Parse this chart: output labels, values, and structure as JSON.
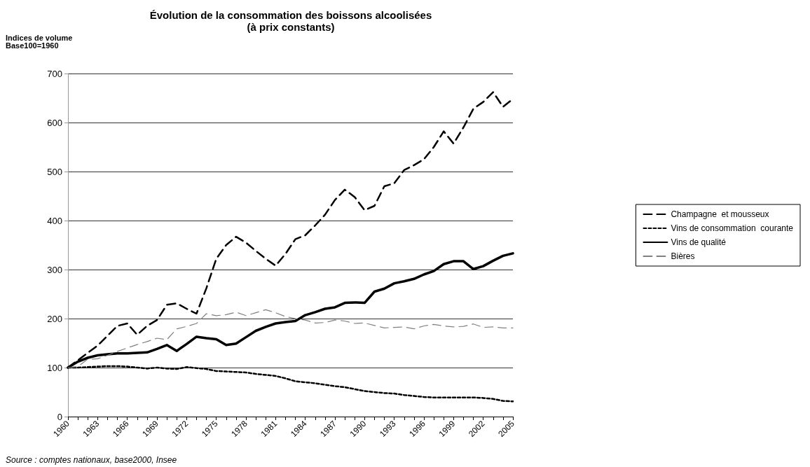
{
  "chart_data": {
    "type": "line",
    "title": "Évolution de la consommation des boissons alcoolisées\n(à prix constants)",
    "ylabel": "Indices de volume\nBase100=1960",
    "annotations": [
      "Source : comptes nationaux, base2000, Insee"
    ],
    "categories": [
      "1960",
      null,
      null,
      "1963",
      null,
      null,
      "1966",
      null,
      null,
      "1969",
      null,
      null,
      "1972",
      null,
      null,
      "1975",
      null,
      null,
      "1978",
      null,
      null,
      "1981",
      null,
      null,
      "1984",
      null,
      null,
      "1987",
      null,
      null,
      "1990",
      null,
      null,
      "1993",
      null,
      null,
      "1996",
      null,
      null,
      "1999",
      null,
      null,
      "2002",
      null,
      null,
      "2005"
    ],
    "ylim": [
      0,
      700
    ],
    "yticks": [
      0,
      100,
      200,
      300,
      400,
      500,
      600,
      700
    ],
    "grid": "y",
    "legend": "right",
    "marker": "none",
    "series": [
      {
        "name": "Champagne  et mousseux",
        "color": "#000000",
        "line_style": "dashed",
        "values": [
          100,
          115,
          130,
          145,
          165,
          185,
          190,
          167,
          185,
          197,
          228,
          231,
          220,
          210,
          262,
          322,
          350,
          367,
          355,
          338,
          322,
          308,
          332,
          362,
          370,
          390,
          412,
          442,
          463,
          448,
          421,
          430,
          470,
          476,
          503,
          513,
          525,
          550,
          582,
          557,
          590,
          628,
          642,
          662,
          632,
          648
        ]
      },
      {
        "name": "Vins de consommation  courante",
        "color": "#000000",
        "line_style": "dotted",
        "values": [
          100,
          100,
          101,
          102,
          103,
          103,
          102,
          100,
          98,
          100,
          98,
          97,
          101,
          99,
          97,
          93,
          92,
          91,
          90,
          87,
          85,
          83,
          78,
          72,
          70,
          68,
          65,
          62,
          60,
          56,
          52,
          50,
          48,
          47,
          44,
          42,
          40,
          39,
          39,
          39,
          39,
          39,
          38,
          36,
          32,
          31
        ]
      },
      {
        "name": "Vins de qualité",
        "color": "#000000",
        "line_style": "solid",
        "values": [
          100,
          112,
          120,
          125,
          127,
          129,
          129,
          130,
          131,
          138,
          146,
          134,
          148,
          163,
          160,
          158,
          146,
          149,
          162,
          175,
          183,
          190,
          193,
          195,
          207,
          213,
          220,
          223,
          232,
          233,
          232,
          255,
          261,
          272,
          276,
          281,
          290,
          297,
          311,
          317,
          317,
          301,
          307,
          318,
          328,
          333
        ]
      },
      {
        "name": "Bières",
        "color": "#808080",
        "line_style": "dashed",
        "values": [
          100,
          102,
          117,
          118,
          125,
          133,
          140,
          147,
          153,
          160,
          157,
          179,
          184,
          190,
          210,
          206,
          208,
          213,
          206,
          212,
          218,
          212,
          204,
          200,
          197,
          191,
          192,
          197,
          195,
          190,
          191,
          186,
          181,
          182,
          183,
          179,
          185,
          188,
          185,
          183,
          184,
          189,
          182,
          183,
          181,
          181
        ]
      }
    ]
  }
}
